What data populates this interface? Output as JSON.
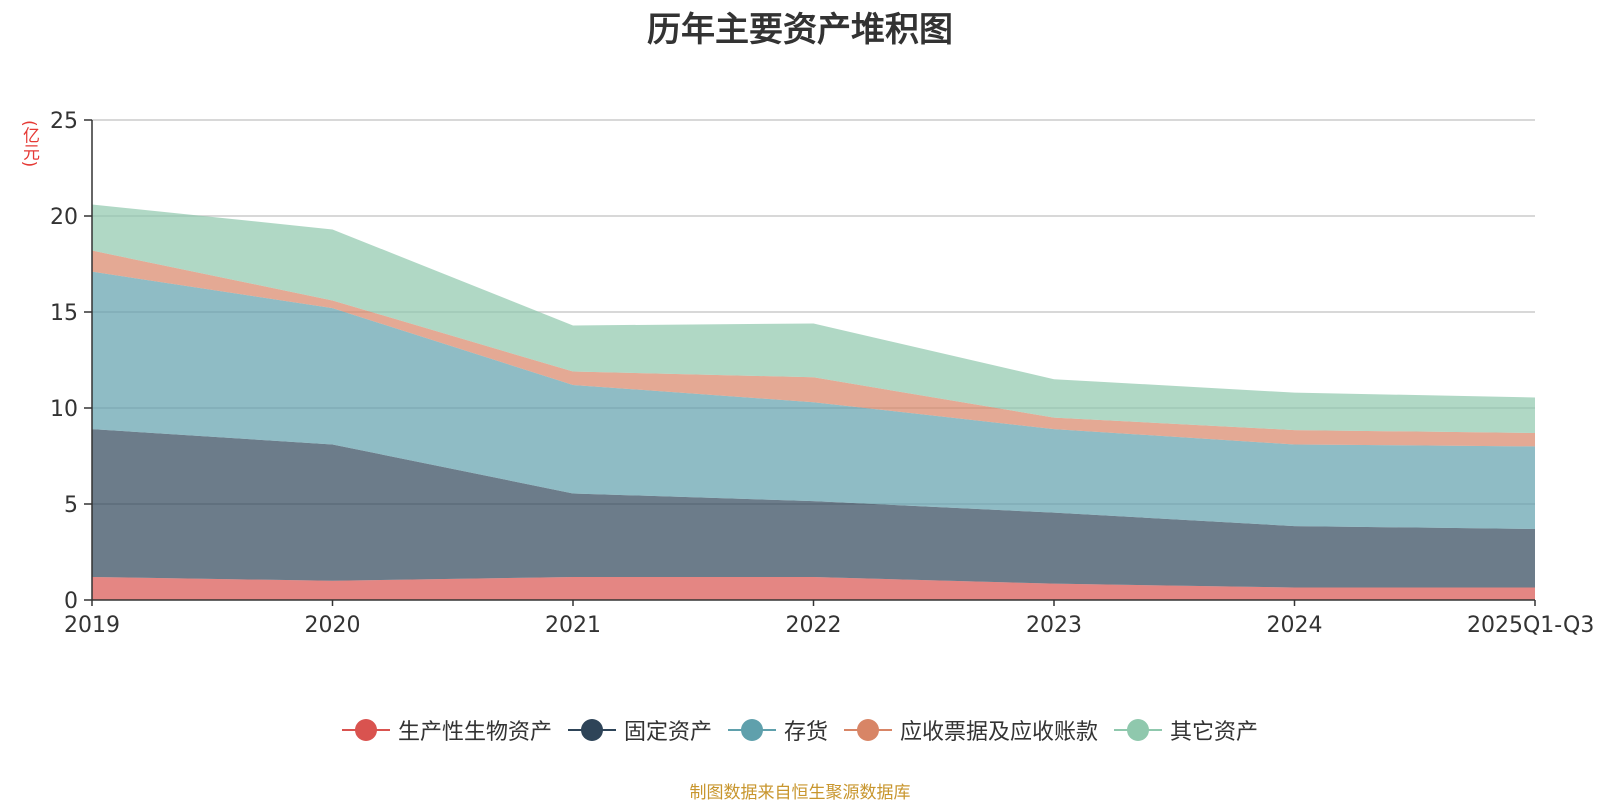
{
  "chart_data": {
    "type": "area",
    "stacked": true,
    "title": "历年主要资产堆积图",
    "unit_label": "(亿元)",
    "x": [
      "2019",
      "2020",
      "2021",
      "2022",
      "2023",
      "2024",
      "2025Q1-Q3"
    ],
    "ylim": [
      0,
      25
    ],
    "yticks": [
      0,
      5,
      10,
      15,
      20,
      25
    ],
    "grid": true,
    "legend_position": "bottom-center",
    "series": [
      {
        "name": "生产性生物资产",
        "color": "#d9534f",
        "values": [
          1.2,
          1.0,
          1.2,
          1.2,
          0.85,
          0.65,
          0.65
        ]
      },
      {
        "name": "固定资产",
        "color": "#2e4458",
        "values": [
          7.7,
          7.1,
          4.35,
          3.95,
          3.7,
          3.2,
          3.05
        ]
      },
      {
        "name": "存货",
        "color": "#5fa0ac",
        "values": [
          8.2,
          7.1,
          5.65,
          5.15,
          4.35,
          4.25,
          4.3
        ]
      },
      {
        "name": "应收票据及应收账款",
        "color": "#d88566",
        "values": [
          1.1,
          0.4,
          0.7,
          1.3,
          0.6,
          0.75,
          0.7
        ]
      },
      {
        "name": "其它资产",
        "color": "#8fc8ad",
        "values": [
          2.4,
          3.7,
          2.4,
          2.8,
          2.0,
          1.95,
          1.85
        ]
      }
    ]
  },
  "source_note": "制图数据来自恒生聚源数据库"
}
